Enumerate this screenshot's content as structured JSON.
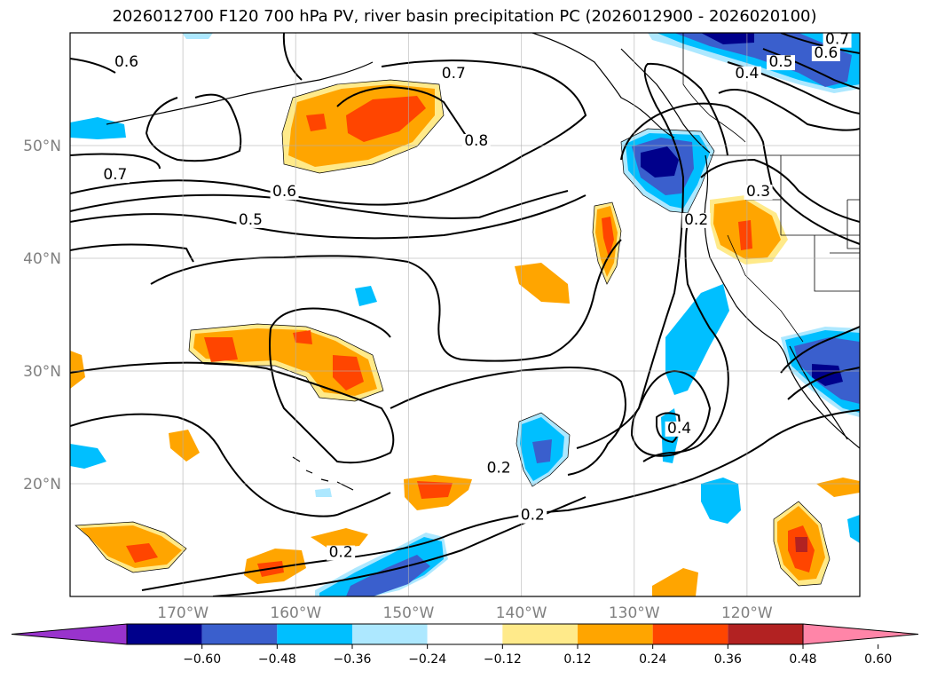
{
  "chart_data": {
    "type": "contour",
    "title": "2026012700 F120 700 hPa PV, river basin precipitation PC (2026012900 - 2026020100)",
    "x_ticks": [
      "170°W",
      "160°W",
      "150°W",
      "140°W",
      "130°W",
      "120°W"
    ],
    "x_tick_values": [
      -170,
      -160,
      -150,
      -140,
      -130,
      -120
    ],
    "y_ticks": [
      "50°N",
      "40°N",
      "30°N",
      "20°N"
    ],
    "y_tick_values": [
      50,
      40,
      30,
      20
    ],
    "lon_range": [
      -180,
      -110
    ],
    "lat_range": [
      10,
      60
    ],
    "grid": true,
    "colorbar": {
      "orientation": "horizontal",
      "extend": "both",
      "ticks": [
        "−0.60",
        "−0.48",
        "−0.36",
        "−0.24",
        "−0.12",
        "0.12",
        "0.24",
        "0.36",
        "0.48",
        "0.60"
      ],
      "levels": [
        -0.6,
        -0.48,
        -0.36,
        -0.24,
        -0.12,
        0.12,
        0.24,
        0.36,
        0.48,
        0.6
      ],
      "colors": [
        "#9933cc",
        "#00008b",
        "#3a5fcd",
        "#00bfff",
        "#ade8ff",
        "#ffffff",
        "#ffea8a",
        "#ffa500",
        "#ff4500",
        "#b22222",
        "#ff85a8"
      ]
    },
    "pv_contour_labels": [
      {
        "text": "0.6",
        "lon": -175,
        "lat": 57
      },
      {
        "text": "0.7",
        "lon": -146,
        "lat": 56
      },
      {
        "text": "0.8",
        "lon": -144,
        "lat": 50
      },
      {
        "text": "0.7",
        "lon": -176,
        "lat": 47
      },
      {
        "text": "0.6",
        "lon": -161,
        "lat": 45.5
      },
      {
        "text": "0.5",
        "lon": -164,
        "lat": 43
      },
      {
        "text": "0.7",
        "lon": -112,
        "lat": 59
      },
      {
        "text": "0.6",
        "lon": -113,
        "lat": 57.8
      },
      {
        "text": "0.5",
        "lon": -117,
        "lat": 57
      },
      {
        "text": "0.4",
        "lon": -120,
        "lat": 56
      },
      {
        "text": "0.3",
        "lon": -119,
        "lat": 45.5
      },
      {
        "text": "0.2",
        "lon": -124.5,
        "lat": 43
      },
      {
        "text": "0.4",
        "lon": -126,
        "lat": 24.5
      },
      {
        "text": "0.2",
        "lon": -142,
        "lat": 21
      },
      {
        "text": "0.2",
        "lon": -139,
        "lat": 16.8
      },
      {
        "text": "0.2",
        "lon": -156,
        "lat": 13.5
      }
    ]
  }
}
